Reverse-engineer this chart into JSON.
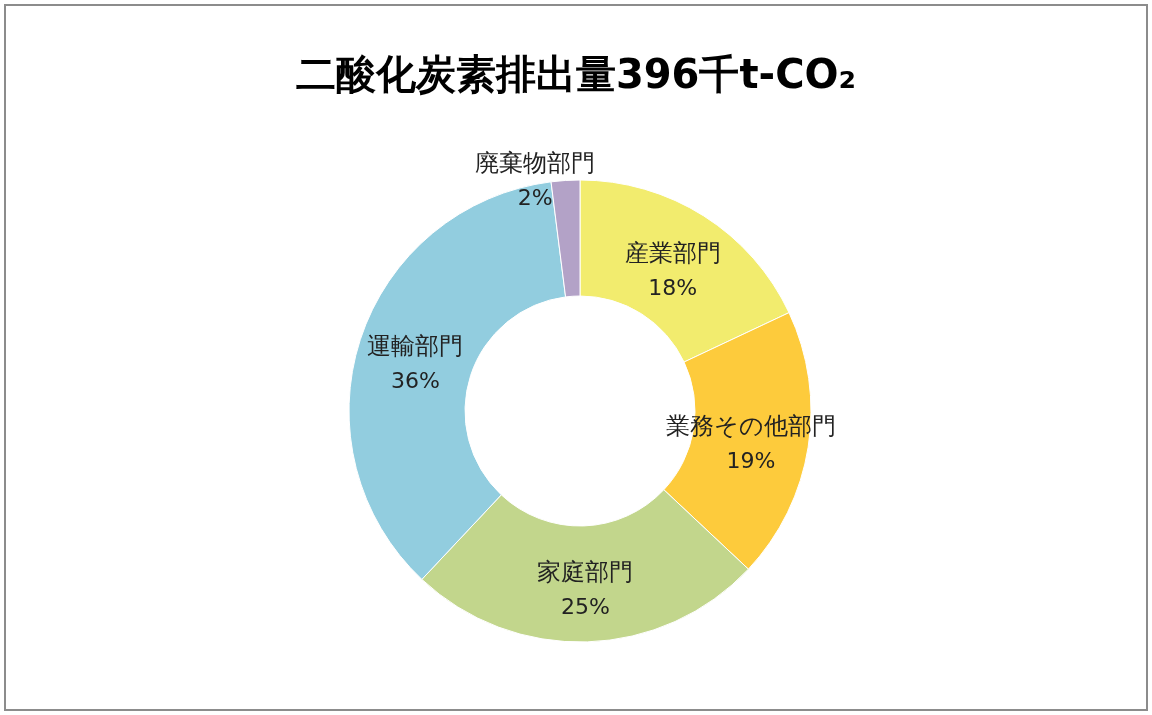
{
  "chart_data": {
    "type": "donut",
    "title": "二酸化炭素排出量396千t-CO₂",
    "categories": [
      "産業部門",
      "業務その他部門",
      "家庭部門",
      "運輸部門",
      "廃棄物部門"
    ],
    "values": [
      18,
      19,
      25,
      36,
      2
    ],
    "value_labels": [
      "18%",
      "19%",
      "25%",
      "36%",
      "2%"
    ],
    "colors": [
      "#f2ec6e",
      "#fdcb3c",
      "#c2d68c",
      "#92cddf",
      "#b3a2c7"
    ]
  }
}
